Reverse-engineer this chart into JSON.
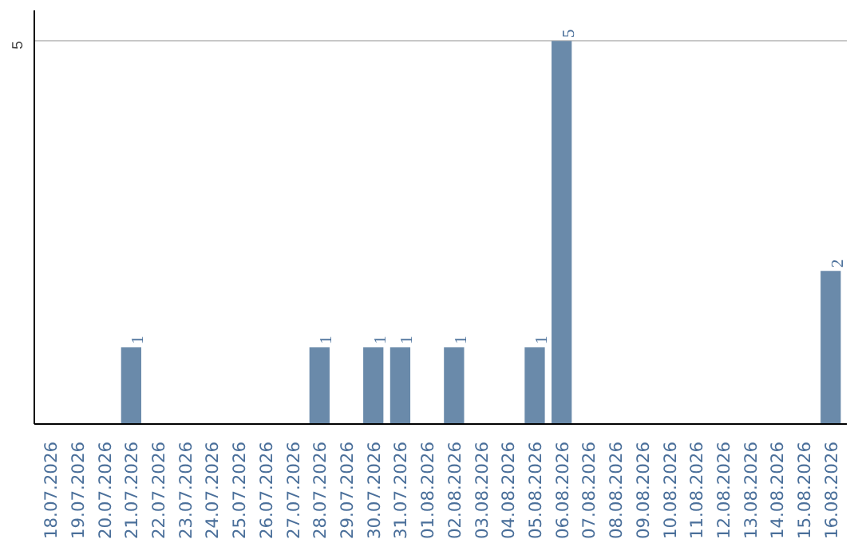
{
  "chart_data": {
    "type": "bar",
    "categories": [
      "18.07.2026",
      "19.07.2026",
      "20.07.2026",
      "21.07.2026",
      "22.07.2026",
      "23.07.2026",
      "24.07.2026",
      "25.07.2026",
      "26.07.2026",
      "27.07.2026",
      "28.07.2026",
      "29.07.2026",
      "30.07.2026",
      "31.07.2026",
      "01.08.2026",
      "02.08.2026",
      "03.08.2026",
      "04.08.2026",
      "05.08.2026",
      "06.08.2026",
      "07.08.2026",
      "08.08.2026",
      "09.08.2026",
      "10.08.2026",
      "11.08.2026",
      "12.08.2026",
      "13.08.2026",
      "14.08.2026",
      "15.08.2026",
      "16.08.2026"
    ],
    "values": [
      0,
      0,
      0,
      1,
      0,
      0,
      0,
      0,
      0,
      0,
      1,
      0,
      1,
      1,
      0,
      1,
      0,
      0,
      1,
      5,
      0,
      0,
      0,
      0,
      0,
      0,
      0,
      0,
      0,
      2
    ],
    "value_labels": [
      null,
      null,
      null,
      "1",
      null,
      null,
      null,
      null,
      null,
      null,
      "1",
      null,
      "1",
      "1",
      null,
      "1",
      null,
      null,
      "1",
      "5",
      null,
      null,
      null,
      null,
      null,
      null,
      null,
      null,
      null,
      "2"
    ],
    "color": "#6a8aaa",
    "ylim": [
      0,
      5.4
    ],
    "yticks": [
      5
    ],
    "grid": "y"
  }
}
